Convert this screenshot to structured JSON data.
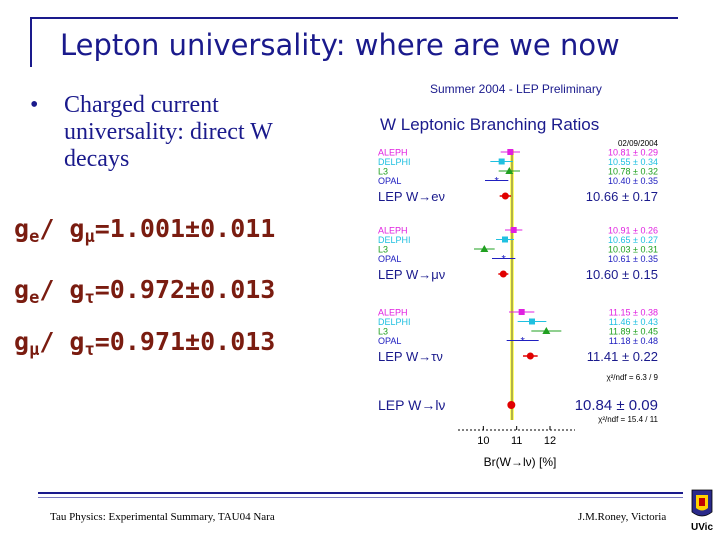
{
  "slide": {
    "title": "Lepton universality: where are we now",
    "bullet": "Charged current universality: direct W decays",
    "ratios": [
      {
        "g1": "g",
        "s1": "e",
        "g2": "g",
        "s2": "μ",
        "value": "=1.001±0.011"
      },
      {
        "g1": "g",
        "s1": "e",
        "g2": "g",
        "s2": "τ",
        "value": "=0.972±0.013"
      },
      {
        "g1": "g",
        "s1": "μ",
        "g2": "g",
        "s2": "τ",
        "value": "=0.971±0.013"
      }
    ],
    "footer_left": "Tau Physics: Experimental Summary, TAU04 Nara",
    "footer_right": "J.M.Roney, Victoria",
    "logo_text": "UVic"
  },
  "chart_data": {
    "type": "scatter",
    "header": "Summer 2004 - LEP Preliminary",
    "title": "W Leptonic Branching Ratios",
    "date": "02/09/2004",
    "xlabel": "Br(W→lν) [%]",
    "xlim": [
      9.3,
      12.6
    ],
    "xticks": [
      "10",
      "11",
      "12"
    ],
    "sm_band": [
      10.8,
      10.92
    ],
    "groups": [
      {
        "entries": [
          {
            "name": "ALEPH",
            "value": 10.81,
            "error": 0.29,
            "label": "10.81 ± 0.29",
            "color": "#e020e0",
            "marker": "square"
          },
          {
            "name": "DELPHI",
            "value": 10.55,
            "error": 0.34,
            "label": "10.55 ± 0.34",
            "color": "#20c0e0",
            "marker": "square"
          },
          {
            "name": "L3",
            "value": 10.78,
            "error": 0.32,
            "label": "10.78 ± 0.32",
            "color": "#20a020",
            "marker": "triangle"
          },
          {
            "name": "OPAL",
            "value": 10.4,
            "error": 0.35,
            "label": "10.40 ± 0.35",
            "color": "#2020c0",
            "marker": "star"
          }
        ],
        "combined": {
          "name": "LEP W→eν",
          "value": 10.66,
          "error": 0.17,
          "label": "10.66 ± 0.17"
        }
      },
      {
        "entries": [
          {
            "name": "ALEPH",
            "value": 10.91,
            "error": 0.26,
            "label": "10.91 ± 0.26",
            "color": "#e020e0",
            "marker": "square"
          },
          {
            "name": "DELPHI",
            "value": 10.65,
            "error": 0.27,
            "label": "10.65 ± 0.27",
            "color": "#20c0e0",
            "marker": "square"
          },
          {
            "name": "L3",
            "value": 10.03,
            "error": 0.31,
            "label": "10.03 ± 0.31",
            "color": "#20a020",
            "marker": "triangle"
          },
          {
            "name": "OPAL",
            "value": 10.61,
            "error": 0.35,
            "label": "10.61 ± 0.35",
            "color": "#2020c0",
            "marker": "star"
          }
        ],
        "combined": {
          "name": "LEP W→μν",
          "value": 10.6,
          "error": 0.15,
          "label": "10.60 ± 0.15"
        }
      },
      {
        "entries": [
          {
            "name": "ALEPH",
            "value": 11.15,
            "error": 0.38,
            "label": "11.15 ± 0.38",
            "color": "#e020e0",
            "marker": "square"
          },
          {
            "name": "DELPHI",
            "value": 11.46,
            "error": 0.43,
            "label": "11.46 ± 0.43",
            "color": "#20c0e0",
            "marker": "square"
          },
          {
            "name": "L3",
            "value": 11.89,
            "error": 0.45,
            "label": "11.89 ± 0.45",
            "color": "#20a020",
            "marker": "triangle"
          },
          {
            "name": "OPAL",
            "value": 11.18,
            "error": 0.48,
            "label": "11.18 ± 0.48",
            "color": "#2020c0",
            "marker": "star"
          }
        ],
        "combined": {
          "name": "LEP W→τν",
          "value": 11.41,
          "error": 0.22,
          "label": "11.41 ± 0.22"
        }
      }
    ],
    "chi2_lfu": "χ²/ndf = 6.3 / 9",
    "overall": {
      "name": "LEP W→lν",
      "value": 10.84,
      "error": 0.09,
      "label": "10.84 ± 0.09"
    },
    "chi2_all": "χ²/ndf = 15.4 / 11"
  },
  "colors": {
    "accent": "#1a1a8c",
    "ratio_text": "#7a1c10",
    "band": "#ffff66",
    "combined": "#e00000"
  }
}
